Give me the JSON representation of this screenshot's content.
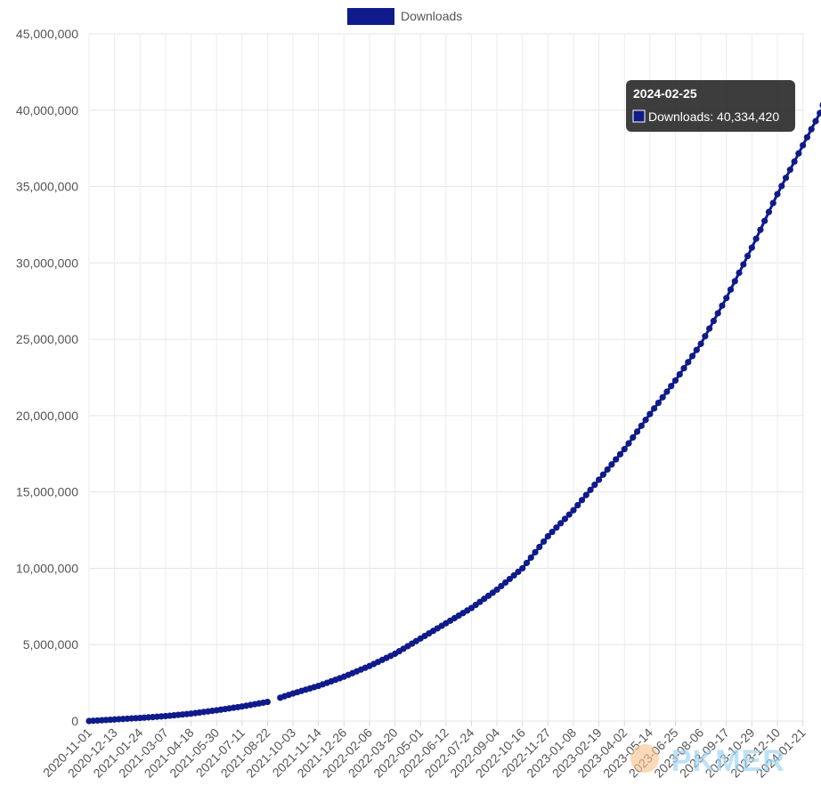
{
  "chart_data": {
    "type": "line",
    "legend": {
      "label": "Downloads",
      "color": "#0f1b8a",
      "position": "top-center"
    },
    "x_tick_labels": [
      "2020-11-01",
      "2020-12-13",
      "2021-01-24",
      "2021-03-07",
      "2021-04-18",
      "2021-05-30",
      "2021-07-11",
      "2021-08-22",
      "2021-10-03",
      "2021-11-14",
      "2021-12-26",
      "2022-02-06",
      "2022-03-20",
      "2022-05-01",
      "2022-06-12",
      "2022-07-24",
      "2022-09-04",
      "2022-10-16",
      "2022-11-27",
      "2023-01-08",
      "2023-02-19",
      "2023-04-02",
      "2023-05-14",
      "2023-06-25",
      "2023-08-06",
      "2023-09-17",
      "2023-10-29",
      "2023-12-10",
      "2024-01-21"
    ],
    "y_tick_labels": [
      "0",
      "5,000,000",
      "10,000,000",
      "15,000,000",
      "20,000,000",
      "25,000,000",
      "30,000,000",
      "35,000,000",
      "40,000,000",
      "45,000,000"
    ],
    "ylim": [
      0,
      45000000
    ],
    "grid": true,
    "series": [
      {
        "name": "Downloads",
        "color": "#0f1b8a",
        "points": [
          [
            "2020-11-01",
            0
          ],
          [
            "2020-12-13",
            100000
          ],
          [
            "2021-01-24",
            200000
          ],
          [
            "2021-03-07",
            320000
          ],
          [
            "2021-04-18",
            480000
          ],
          [
            "2021-05-30",
            700000
          ],
          [
            "2021-07-11",
            950000
          ],
          [
            "2021-08-22",
            1250000
          ],
          [
            "2021-10-03",
            1800000
          ],
          [
            "2021-11-14",
            2300000
          ],
          [
            "2021-12-26",
            2900000
          ],
          [
            "2022-02-06",
            3600000
          ],
          [
            "2022-03-20",
            4400000
          ],
          [
            "2022-05-01",
            5400000
          ],
          [
            "2022-06-12",
            6400000
          ],
          [
            "2022-07-24",
            7400000
          ],
          [
            "2022-09-04",
            8600000
          ],
          [
            "2022-10-16",
            10000000
          ],
          [
            "2022-11-27",
            12100000
          ],
          [
            "2023-01-08",
            13800000
          ],
          [
            "2023-02-19",
            15800000
          ],
          [
            "2023-04-02",
            17800000
          ],
          [
            "2023-05-14",
            20100000
          ],
          [
            "2023-06-25",
            22300000
          ],
          [
            "2023-08-06",
            24700000
          ],
          [
            "2023-09-17",
            27700000
          ],
          [
            "2023-10-29",
            31000000
          ],
          [
            "2023-12-10",
            34500000
          ],
          [
            "2024-01-21",
            37700000
          ],
          [
            "2024-02-25",
            40334420
          ]
        ]
      }
    ],
    "gaps": [
      [
        "2021-08-22",
        "2021-09-06"
      ]
    ],
    "tooltip": {
      "title": "2024-02-25",
      "label": "Downloads: 40,334,420"
    }
  },
  "watermark": {
    "text": "PKMER"
  }
}
